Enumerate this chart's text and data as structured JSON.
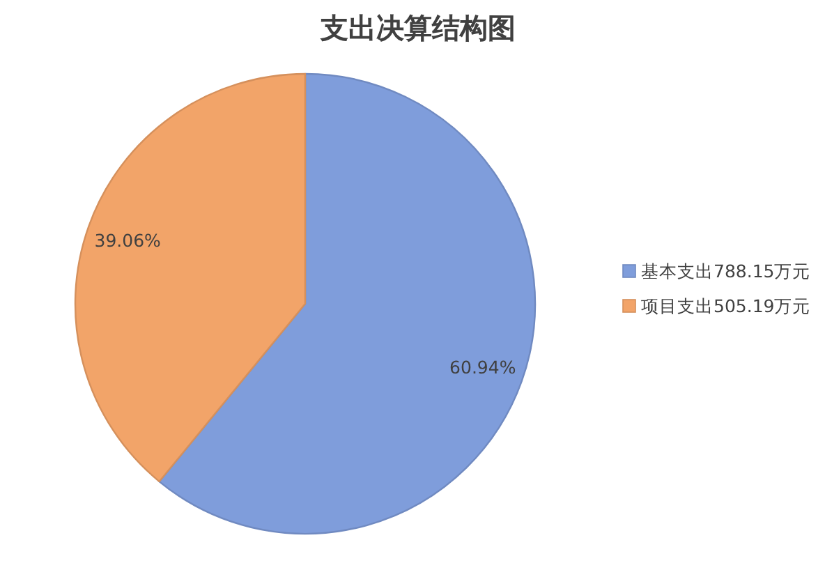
{
  "chart_data": {
    "type": "pie",
    "title": "支出决算结构图",
    "categories": [
      "基本支出788.15万元",
      "项目支出505.19万元"
    ],
    "values": [
      60.94,
      39.06
    ],
    "colors": [
      "#7f9ddb",
      "#f2a469"
    ],
    "value_labels": [
      "60.94%",
      "39.06%"
    ],
    "legend": "right"
  }
}
